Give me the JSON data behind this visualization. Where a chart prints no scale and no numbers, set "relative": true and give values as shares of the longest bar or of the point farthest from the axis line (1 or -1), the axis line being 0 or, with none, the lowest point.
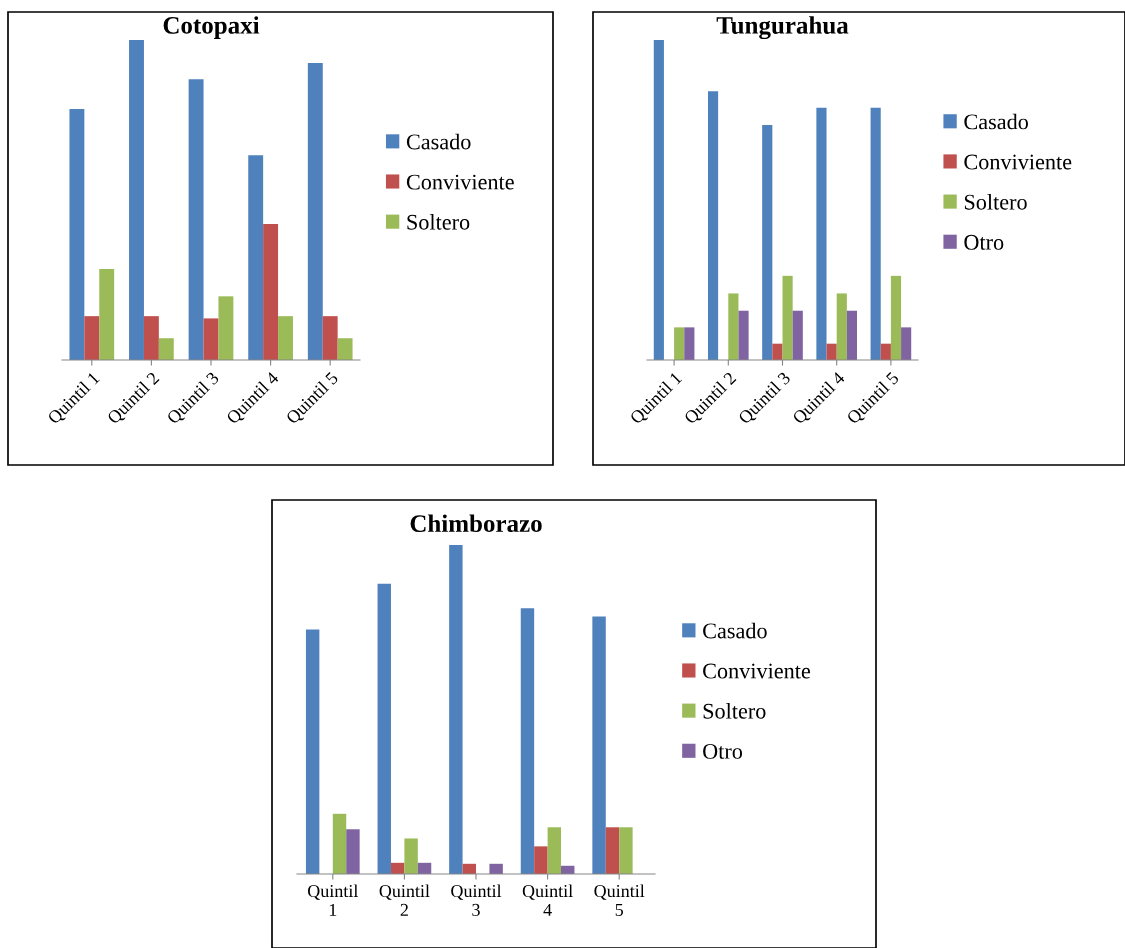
{
  "chart_data": [
    {
      "type": "bar",
      "title": "Cotopaxi",
      "relative": true,
      "legend": "right",
      "categories": [
        "Quintil 1",
        "Quintil 2",
        "Quintil 3",
        "Quintil 4",
        "Quintil 5"
      ],
      "series": [
        {
          "name": "Casado",
          "color": "#4f81bd",
          "values": [
            0.784,
            1,
            0.877,
            0.64,
            0.928
          ]
        },
        {
          "name": "Conviviente",
          "color": "#c0504d",
          "values": [
            0.137,
            0.137,
            0.13,
            0.425,
            0.137
          ]
        },
        {
          "name": "Soltero",
          "color": "#9bbb59",
          "values": [
            0.284,
            0.068,
            0.199,
            0.137,
            0.068
          ]
        }
      ]
    },
    {
      "type": "bar",
      "title": "Tungurahua",
      "relative": true,
      "legend": "right",
      "categories": [
        "Quintil 1",
        "Quintil 2",
        "Quintil 3",
        "Quintil 4",
        "Quintil 5"
      ],
      "series": [
        {
          "name": "Casado",
          "color": "#4f81bd",
          "values": [
            1,
            0.84,
            0.734,
            0.788,
            0.788
          ]
        },
        {
          "name": "Conviviente",
          "color": "#c0504d",
          "values": [
            0,
            0,
            0.051,
            0.051,
            0.051
          ]
        },
        {
          "name": "Soltero",
          "color": "#9bbb59",
          "values": [
            0.102,
            0.208,
            0.263,
            0.208,
            0.263
          ]
        },
        {
          "name": "Otro",
          "color": "#8064a2",
          "values": [
            0.102,
            0.154,
            0.154,
            0.154,
            0.102
          ]
        }
      ]
    },
    {
      "type": "bar",
      "title": "Chimborazo",
      "relative": true,
      "legend": "right",
      "categories": [
        "Quintil\n1",
        "Quintil\n2",
        "Quintil\n3",
        "Quintil\n4",
        "Quintil\n5"
      ],
      "series": [
        {
          "name": "Casado",
          "color": "#4f81bd",
          "values": [
            0.743,
            0.882,
            1,
            0.808,
            0.783
          ]
        },
        {
          "name": "Conviviente",
          "color": "#c0504d",
          "values": [
            0,
            0.034,
            0.031,
            0.084,
            0.142
          ]
        },
        {
          "name": "Soltero",
          "color": "#9bbb59",
          "values": [
            0.183,
            0.108,
            0,
            0.142,
            0.142
          ]
        },
        {
          "name": "Otro",
          "color": "#8064a2",
          "values": [
            0.136,
            0.034,
            0.031,
            0.025,
            0
          ]
        }
      ]
    }
  ]
}
